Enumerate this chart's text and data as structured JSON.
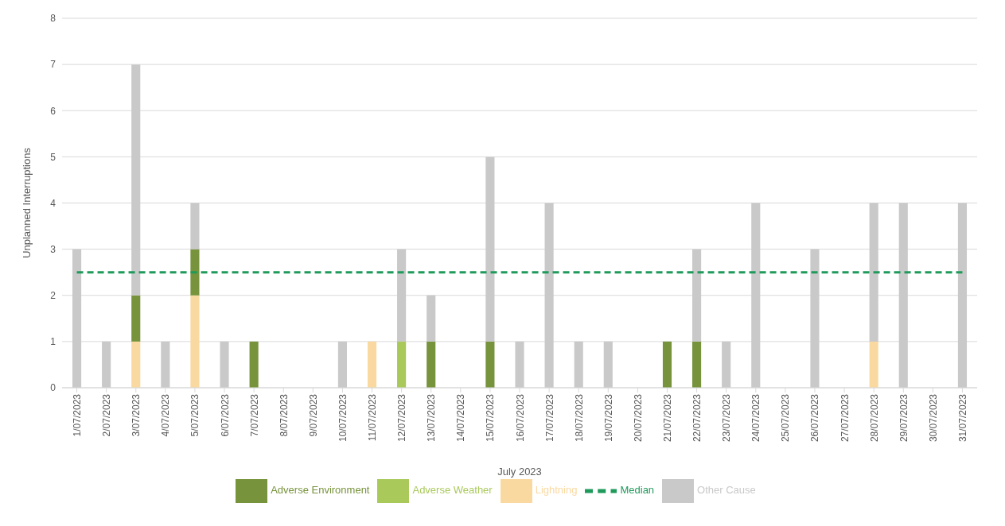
{
  "chart_data": {
    "type": "bar",
    "stacked": true,
    "xlabel": "July 2023",
    "ylabel": "Unplanned Interruptions",
    "categories": [
      "1/07/2023",
      "2/07/2023",
      "3/07/2023",
      "4/07/2023",
      "5/07/2023",
      "6/07/2023",
      "7/07/2023",
      "8/07/2023",
      "9/07/2023",
      "10/07/2023",
      "11/07/2023",
      "12/07/2023",
      "13/07/2023",
      "14/07/2023",
      "15/07/2023",
      "16/07/2023",
      "17/07/2023",
      "18/07/2023",
      "19/07/2023",
      "20/07/2023",
      "21/07/2023",
      "22/07/2023",
      "23/07/2023",
      "24/07/2023",
      "25/07/2023",
      "26/07/2023",
      "27/07/2023",
      "28/07/2023",
      "29/07/2023",
      "30/07/2023",
      "31/07/2023"
    ],
    "series": [
      {
        "name": "Lightning",
        "color": "#fad9a1",
        "values": [
          0,
          0,
          1,
          0,
          2,
          0,
          0,
          0,
          0,
          0,
          1,
          0,
          0,
          0,
          0,
          0,
          0,
          0,
          0,
          0,
          0,
          0,
          0,
          0,
          0,
          0,
          0,
          1,
          0,
          0,
          0
        ]
      },
      {
        "name": "Adverse Weather",
        "color": "#a9c95b",
        "values": [
          0,
          0,
          0,
          0,
          0,
          0,
          0,
          0,
          0,
          0,
          0,
          1,
          0,
          0,
          0,
          0,
          0,
          0,
          0,
          0,
          0,
          0,
          0,
          0,
          0,
          0,
          0,
          0,
          0,
          0,
          0
        ]
      },
      {
        "name": "Adverse Environment",
        "color": "#77933c",
        "values": [
          0,
          0,
          1,
          0,
          1,
          0,
          1,
          0,
          0,
          0,
          0,
          0,
          1,
          0,
          1,
          0,
          0,
          0,
          0,
          0,
          1,
          1,
          0,
          0,
          0,
          0,
          0,
          0,
          0,
          0,
          0
        ]
      },
      {
        "name": "Other Cause",
        "color": "#c9c9c9",
        "values": [
          3,
          1,
          5,
          1,
          1,
          1,
          0,
          0,
          0,
          1,
          0,
          2,
          1,
          0,
          4,
          1,
          4,
          1,
          1,
          0,
          0,
          2,
          1,
          4,
          0,
          3,
          0,
          3,
          4,
          0,
          4
        ]
      },
      {
        "name": "Median",
        "type": "line",
        "line_style": "dashed",
        "color": "#1f9a5b",
        "values": [
          2.5,
          2.5,
          2.5,
          2.5,
          2.5,
          2.5,
          2.5,
          2.5,
          2.5,
          2.5,
          2.5,
          2.5,
          2.5,
          2.5,
          2.5,
          2.5,
          2.5,
          2.5,
          2.5,
          2.5,
          2.5,
          2.5,
          2.5,
          2.5,
          2.5,
          2.5,
          2.5,
          2.5,
          2.5,
          2.5,
          2.5
        ]
      }
    ],
    "ylim": [
      0,
      8
    ],
    "yticks": [
      0,
      1,
      2,
      3,
      4,
      5,
      6,
      7,
      8
    ],
    "grid": "y",
    "legend": "bottom",
    "marker": "none"
  }
}
